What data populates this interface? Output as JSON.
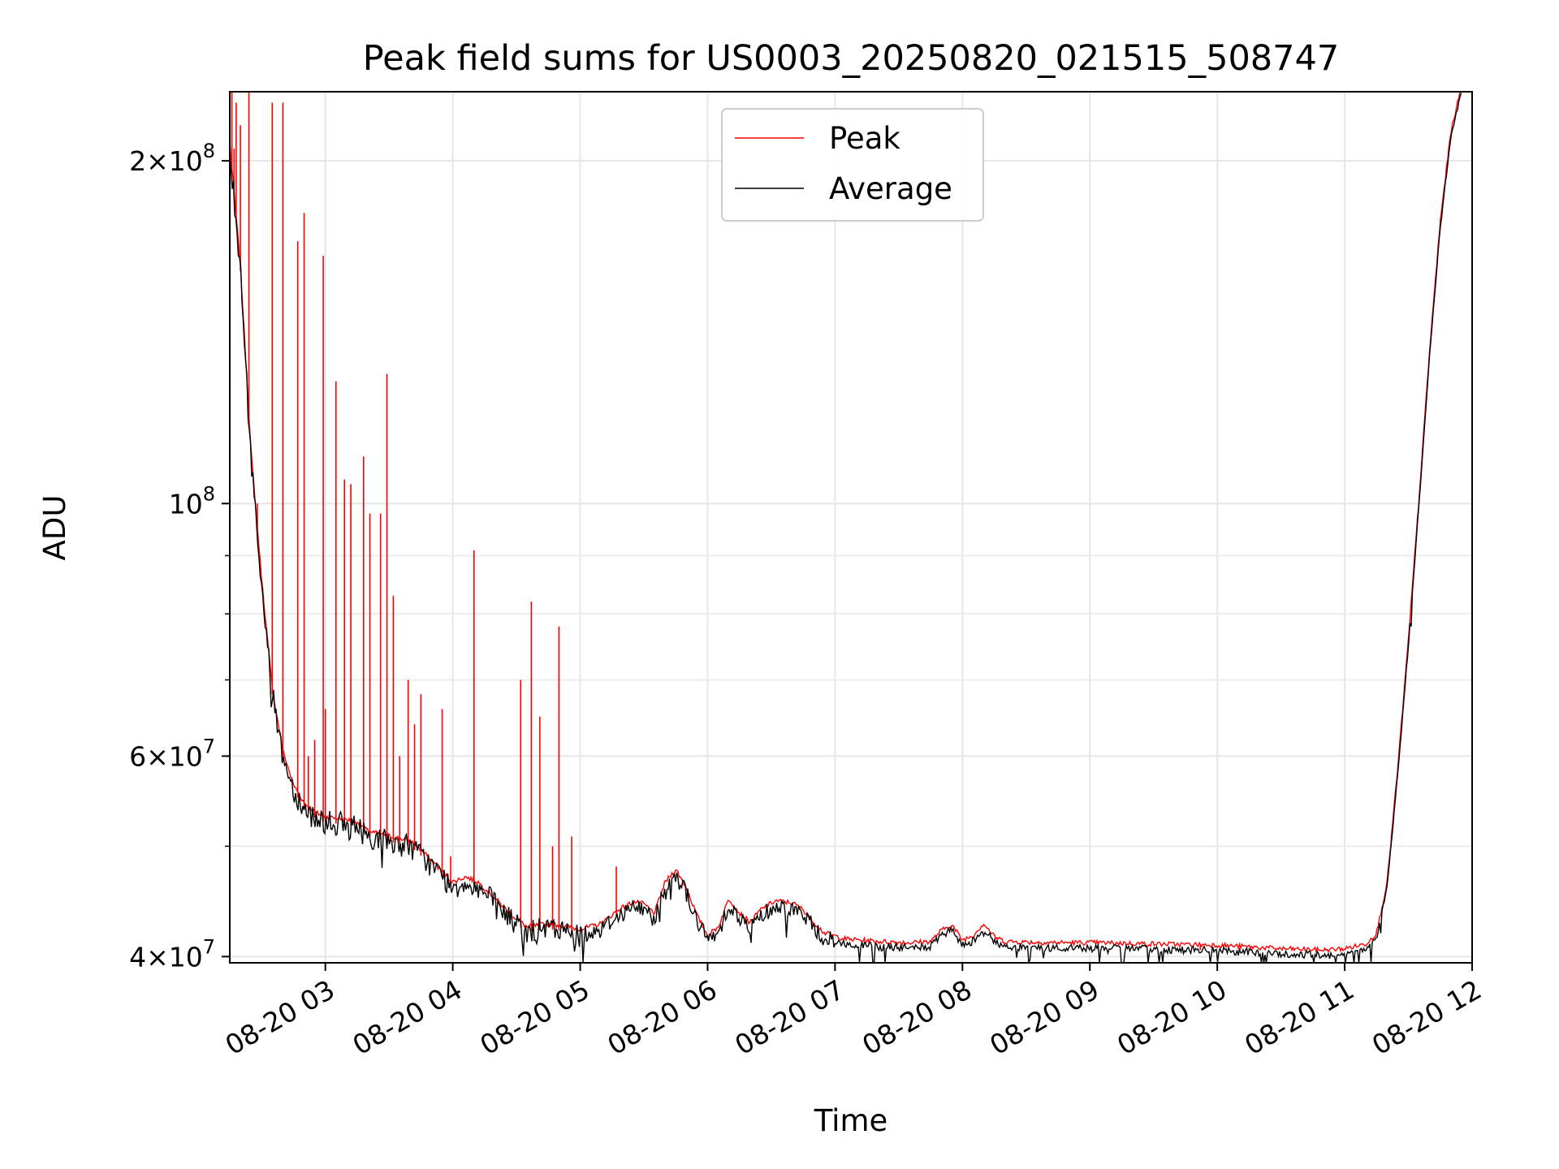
{
  "chart_data": {
    "type": "line",
    "title": "Peak field sums for US0003_20250820_021515_508747",
    "xlabel": "Time",
    "ylabel": "ADU",
    "yscale": "log",
    "grid": true,
    "legend_position": "top-center",
    "xlim": [
      "08-20 02:15",
      "08-20 12:00"
    ],
    "ylim": [
      39500000,
      230000000
    ],
    "x_ticks": [
      "08-20 03",
      "08-20 04",
      "08-20 05",
      "08-20 06",
      "08-20 07",
      "08-20 08",
      "08-20 09",
      "08-20 10",
      "08-20 11",
      "08-20 12"
    ],
    "y_ticks": [
      {
        "value": 200000000,
        "mantissa": "2",
        "exponent": "8"
      },
      {
        "value": 100000000,
        "mantissa": "",
        "exponent": "8"
      },
      {
        "value": 60000000,
        "mantissa": "6",
        "exponent": "7"
      },
      {
        "value": 40000000,
        "mantissa": "4",
        "exponent": "7"
      }
    ],
    "y_minor_ticks": [
      50000000,
      70000000,
      80000000,
      90000000
    ],
    "series": [
      {
        "name": "Peak",
        "color": "#ff0000",
        "spikes": [
          [
            "08-20 02:16",
            230000000
          ],
          [
            "08-20 02:17",
            205000000
          ],
          [
            "08-20 02:18",
            225000000
          ],
          [
            "08-20 02:20",
            215000000
          ],
          [
            "08-20 02:24",
            230000000
          ],
          [
            "08-20 02:28",
            100000000
          ],
          [
            "08-20 02:35",
            225000000
          ],
          [
            "08-20 02:40",
            225000000
          ],
          [
            "08-20 02:47",
            170000000
          ],
          [
            "08-20 02:50",
            180000000
          ],
          [
            "08-20 02:52",
            60000000
          ],
          [
            "08-20 02:55",
            62000000
          ],
          [
            "08-20 02:59",
            165000000
          ],
          [
            "08-20 03:00",
            66000000
          ],
          [
            "08-20 03:05",
            128000000
          ],
          [
            "08-20 03:09",
            105000000
          ],
          [
            "08-20 03:12",
            104000000
          ],
          [
            "08-20 03:18",
            110000000
          ],
          [
            "08-20 03:21",
            98000000
          ],
          [
            "08-20 03:26",
            98000000
          ],
          [
            "08-20 03:29",
            130000000
          ],
          [
            "08-20 03:32",
            83000000
          ],
          [
            "08-20 03:35",
            60000000
          ],
          [
            "08-20 03:39",
            70000000
          ],
          [
            "08-20 03:42",
            64000000
          ],
          [
            "08-20 03:45",
            68000000
          ],
          [
            "08-20 03:55",
            66000000
          ],
          [
            "08-20 03:59",
            49000000
          ],
          [
            "08-20 04:10",
            91000000
          ],
          [
            "08-20 04:32",
            70000000
          ],
          [
            "08-20 04:37",
            82000000
          ],
          [
            "08-20 04:41",
            65000000
          ],
          [
            "08-20 04:47",
            50000000
          ],
          [
            "08-20 04:50",
            78000000
          ],
          [
            "08-20 04:56",
            51000000
          ],
          [
            "08-20 05:17",
            48000000
          ],
          [
            "08-20 07:55",
            42000000
          ],
          [
            "08-20 09:52",
            41000000
          ],
          [
            "08-20 10:03",
            40500000
          ],
          [
            "08-20 11:02",
            40400000
          ]
        ]
      },
      {
        "name": "Average",
        "color": "#000000",
        "points": [
          [
            "08-20 02:15",
            205000000
          ],
          [
            "08-20 02:20",
            160000000
          ],
          [
            "08-20 02:25",
            110000000
          ],
          [
            "08-20 02:30",
            85000000
          ],
          [
            "08-20 02:35",
            68000000
          ],
          [
            "08-20 02:40",
            60000000
          ],
          [
            "08-20 02:45",
            56000000
          ],
          [
            "08-20 02:50",
            54000000
          ],
          [
            "08-20 02:55",
            53000000
          ],
          [
            "08-20 03:00",
            52500000
          ],
          [
            "08-20 03:07",
            52300000
          ],
          [
            "08-20 03:15",
            52000000
          ],
          [
            "08-20 03:20",
            51000000
          ],
          [
            "08-20 03:30",
            50500000
          ],
          [
            "08-20 03:40",
            50000000
          ],
          [
            "08-20 03:48",
            48500000
          ],
          [
            "08-20 03:55",
            47000000
          ],
          [
            "08-20 04:00",
            46000000
          ],
          [
            "08-20 04:06",
            46500000
          ],
          [
            "08-20 04:12",
            46000000
          ],
          [
            "08-20 04:20",
            44500000
          ],
          [
            "08-20 04:28",
            43000000
          ],
          [
            "08-20 04:35",
            42000000
          ],
          [
            "08-20 04:45",
            42300000
          ],
          [
            "08-20 04:55",
            42000000
          ],
          [
            "08-20 05:00",
            41800000
          ],
          [
            "08-20 05:10",
            42300000
          ],
          [
            "08-20 05:18",
            43500000
          ],
          [
            "08-20 05:25",
            44200000
          ],
          [
            "08-20 05:30",
            44000000
          ],
          [
            "08-20 05:35",
            43200000
          ],
          [
            "08-20 05:40",
            46000000
          ],
          [
            "08-20 05:45",
            47200000
          ],
          [
            "08-20 05:50",
            45500000
          ],
          [
            "08-20 05:55",
            43000000
          ],
          [
            "08-20 06:00",
            41300000
          ],
          [
            "08-20 06:05",
            42000000
          ],
          [
            "08-20 06:10",
            44500000
          ],
          [
            "08-20 06:15",
            43200000
          ],
          [
            "08-20 06:20",
            42400000
          ],
          [
            "08-20 06:25",
            43500000
          ],
          [
            "08-20 06:32",
            44300000
          ],
          [
            "08-20 06:40",
            44100000
          ],
          [
            "08-20 06:45",
            43500000
          ],
          [
            "08-20 06:50",
            42400000
          ],
          [
            "08-20 06:55",
            41500000
          ],
          [
            "08-20 07:05",
            41000000
          ],
          [
            "08-20 07:20",
            40800000
          ],
          [
            "08-20 07:35",
            40700000
          ],
          [
            "08-20 07:45",
            40800000
          ],
          [
            "08-20 07:50",
            41700000
          ],
          [
            "08-20 07:55",
            42200000
          ],
          [
            "08-20 08:00",
            40900000
          ],
          [
            "08-20 08:05",
            41300000
          ],
          [
            "08-20 08:10",
            42300000
          ],
          [
            "08-20 08:15",
            41200000
          ],
          [
            "08-20 08:20",
            40800000
          ],
          [
            "08-20 08:40",
            40700000
          ],
          [
            "08-20 09:00",
            40700000
          ],
          [
            "08-20 09:30",
            40600000
          ],
          [
            "08-20 10:00",
            40500000
          ],
          [
            "08-20 10:30",
            40200000
          ],
          [
            "08-20 10:50",
            40100000
          ],
          [
            "08-20 11:00",
            40200000
          ],
          [
            "08-20 11:10",
            40600000
          ],
          [
            "08-20 11:15",
            41500000
          ],
          [
            "08-20 11:20",
            46000000
          ],
          [
            "08-20 11:25",
            58000000
          ],
          [
            "08-20 11:30",
            75000000
          ],
          [
            "08-20 11:35",
            100000000
          ],
          [
            "08-20 11:40",
            135000000
          ],
          [
            "08-20 11:45",
            175000000
          ],
          [
            "08-20 11:50",
            210000000
          ],
          [
            "08-20 11:55",
            230000000
          ]
        ]
      }
    ]
  }
}
